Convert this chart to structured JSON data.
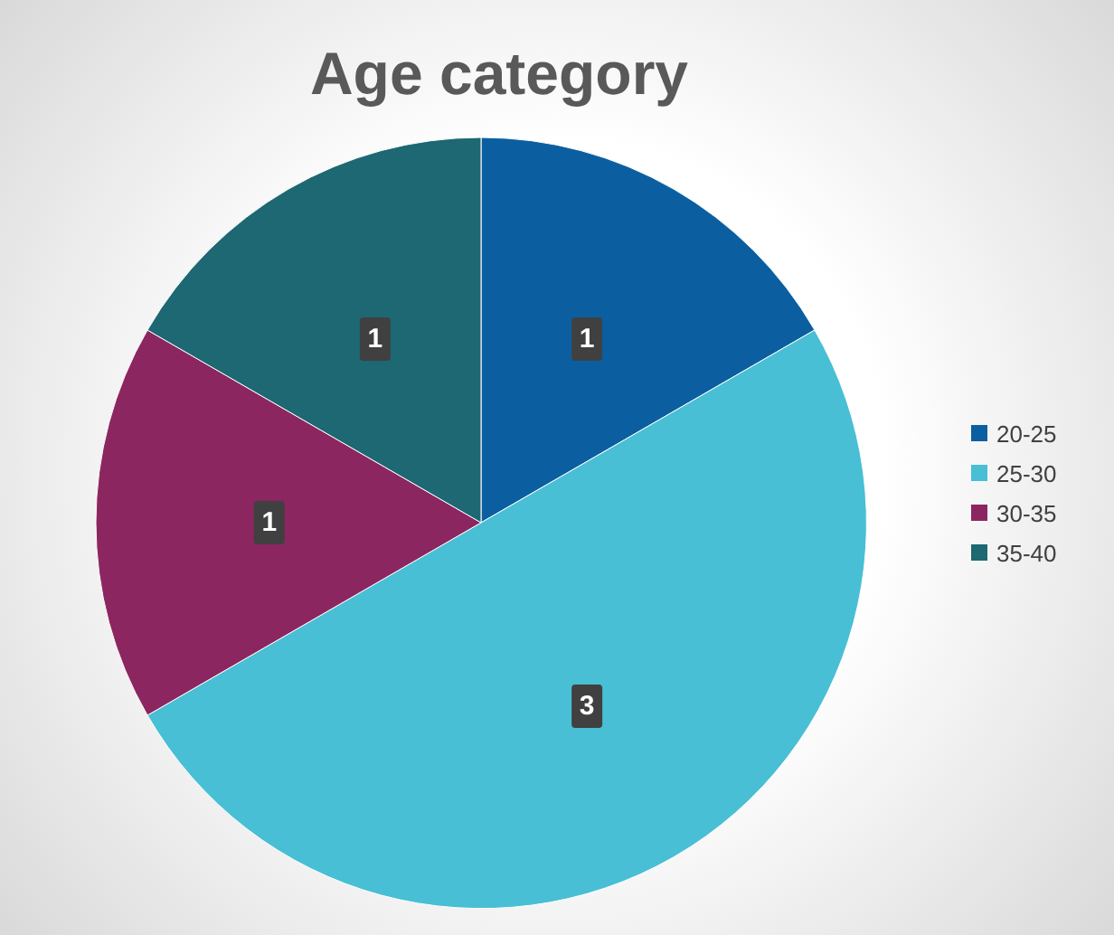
{
  "chart_data": {
    "type": "pie",
    "title": "Age category",
    "categories": [
      "20-25",
      "25-30",
      "30-35",
      "35-40"
    ],
    "values": [
      1,
      3,
      1,
      1
    ],
    "colors": [
      "#0b5fa0",
      "#48bfd4",
      "#8c2660",
      "#1d6872"
    ],
    "data_labels": true,
    "legend": "right"
  }
}
